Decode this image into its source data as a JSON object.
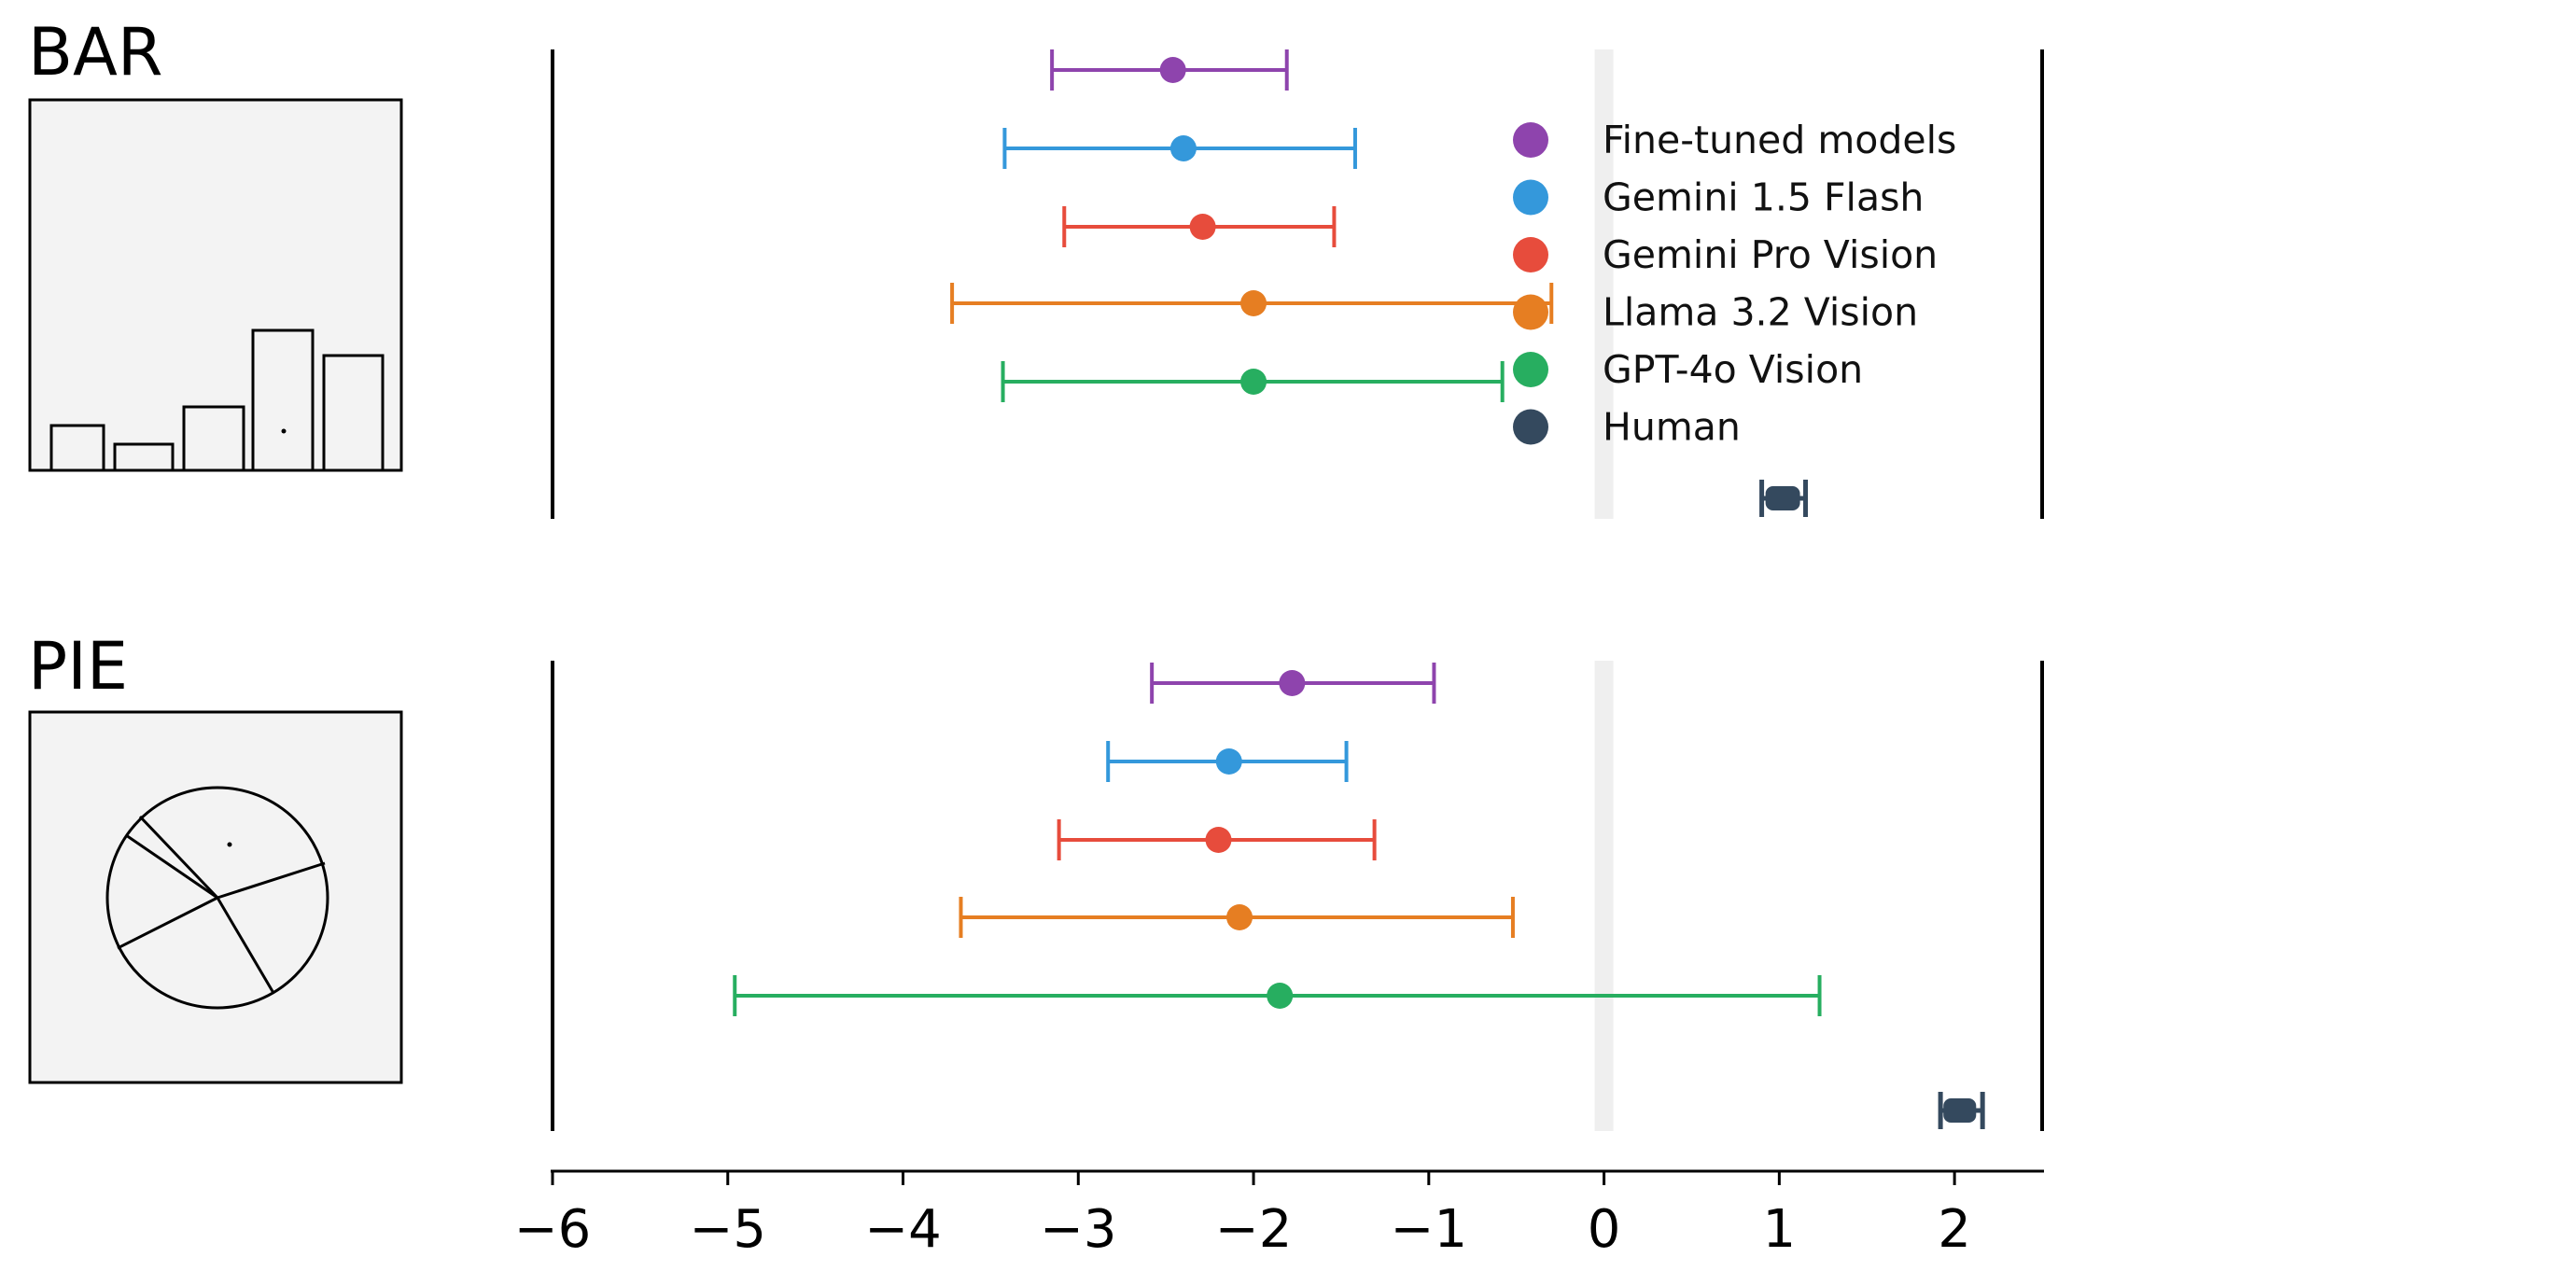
{
  "chart_data": {
    "type": "scatter",
    "subtype": "dot-and-error-bar",
    "xlim": [
      -6,
      2.5
    ],
    "x_ticks": [
      -6,
      -5,
      -4,
      -3,
      -2,
      -1,
      0,
      1,
      2
    ],
    "x_tick_labels": [
      "−6",
      "−5",
      "−4",
      "−3",
      "−2",
      "−1",
      "0",
      "1",
      "2"
    ],
    "reference_line_x": 0,
    "legend_position": "upper-right",
    "series": [
      {
        "name": "Fine-tuned models",
        "color": "#8e44ad"
      },
      {
        "name": "Gemini 1.5 Flash",
        "color": "#3498db"
      },
      {
        "name": "Gemini Pro Vision",
        "color": "#e74c3c"
      },
      {
        "name": "Llama 3.2 Vision",
        "color": "#e67e22"
      },
      {
        "name": "GPT-4o Vision",
        "color": "#27ae60"
      },
      {
        "name": "Human",
        "color": "#34495e"
      }
    ],
    "panels": [
      {
        "title": "BAR",
        "thumbnail": "bar-chart-stimulus",
        "points": [
          {
            "series": "Fine-tuned models",
            "mean": -2.46,
            "low": -3.15,
            "high": -1.81
          },
          {
            "series": "Gemini 1.5 Flash",
            "mean": -2.4,
            "low": -3.42,
            "high": -1.42
          },
          {
            "series": "Gemini Pro Vision",
            "mean": -2.29,
            "low": -3.08,
            "high": -1.54
          },
          {
            "series": "Llama 3.2 Vision",
            "mean": -2.0,
            "low": -3.72,
            "high": -0.3
          },
          {
            "series": "GPT-4o Vision",
            "mean": -2.0,
            "low": -3.43,
            "high": -0.58
          },
          {
            "series": "Human",
            "mean": 1.02,
            "low": 0.9,
            "high": 1.15
          }
        ]
      },
      {
        "title": "PIE",
        "thumbnail": "pie-chart-stimulus",
        "points": [
          {
            "series": "Fine-tuned models",
            "mean": -1.78,
            "low": -2.58,
            "high": -0.97
          },
          {
            "series": "Gemini 1.5 Flash",
            "mean": -2.14,
            "low": -2.83,
            "high": -1.47
          },
          {
            "series": "Gemini Pro Vision",
            "mean": -2.2,
            "low": -3.11,
            "high": -1.31
          },
          {
            "series": "Llama 3.2 Vision",
            "mean": -2.08,
            "low": -3.67,
            "high": -0.52
          },
          {
            "series": "GPT-4o Vision",
            "mean": -1.85,
            "low": -4.96,
            "high": 1.23
          },
          {
            "series": "Human",
            "mean": 2.03,
            "low": 1.92,
            "high": 2.16
          }
        ]
      }
    ]
  }
}
